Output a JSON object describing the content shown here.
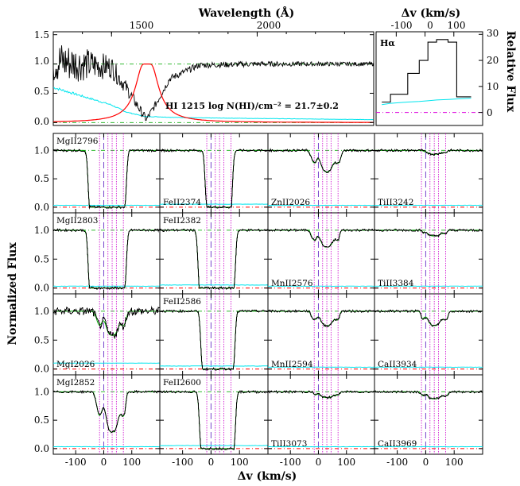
{
  "chart_data": [
    {
      "type": "line",
      "panel": "lyman-alpha",
      "top_axis_label": "Wavelength (Å)",
      "top_ticks": [
        "1500",
        "2000"
      ],
      "y_ticks": [
        "0.0",
        "0.5",
        "1.0",
        "1.5"
      ],
      "ylim": [
        -0.05,
        1.55
      ],
      "annotation": "HI 1215  log N(HI)/cm⁻² = 21.7±0.2",
      "series": [
        {
          "role": "flux",
          "color": "#000000"
        },
        {
          "role": "error",
          "color": "#00e5ee"
        },
        {
          "role": "voigt-fit",
          "color": "#ff0000"
        }
      ],
      "x_approx": [
        1300,
        1400,
        1500,
        1550,
        1600,
        1620,
        1650,
        1700,
        1800,
        2000,
        2200,
        2400
      ],
      "flux_approx": [
        1.05,
        1.0,
        0.95,
        0.6,
        0.2,
        0.05,
        0.3,
        0.75,
        0.98,
        1.0,
        1.0,
        1.0
      ],
      "error_approx": [
        0.6,
        0.45,
        0.3,
        0.18,
        0.12,
        0.1,
        0.1,
        0.09,
        0.08,
        0.07,
        0.06,
        0.05
      ]
    },
    {
      "type": "line",
      "panel": "h-alpha",
      "label": "Hα",
      "top_axis_label": "Δv (km/s)",
      "top_ticks": [
        "-100",
        "0",
        "100"
      ],
      "right_axis_label": "Relative Flux",
      "y_ticks": [
        "0",
        "10",
        "20",
        "30"
      ],
      "ylim": [
        -5,
        31
      ],
      "x": [
        -150,
        -120,
        -60,
        -20,
        10,
        40,
        80,
        110,
        160
      ],
      "flux_step": [
        4,
        7,
        15,
        20,
        27,
        28,
        27,
        6,
        6
      ],
      "error_level": [
        3,
        3.5,
        4,
        4.2,
        4.5,
        4.8,
        5,
        5.2,
        5.5
      ]
    },
    {
      "type": "line",
      "panel_grid": "metal-lines",
      "xlabel": "Δv (km/s)",
      "ylabel": "Normalized Flux",
      "x_ticks": [
        "-100",
        "0",
        "100"
      ],
      "xlim": [
        -180,
        200
      ],
      "y_ticks": [
        "0.0",
        "0.5",
        "1.0"
      ],
      "ylim": [
        -0.1,
        1.3
      ],
      "component_velocities": [
        -15,
        15,
        30,
        45,
        70
      ],
      "systemic_velocity": 0,
      "panels": [
        {
          "label": "MgII2796",
          "shape": "saturated",
          "v1": -50,
          "v2": 75,
          "depth": 1.0
        },
        {
          "label": "FeII2374",
          "shape": "saturated",
          "v1": -15,
          "v2": 70,
          "depth": 0.95
        },
        {
          "label": "ZnII2026",
          "shape": "medium",
          "v1": -30,
          "v2": 80,
          "depth": 0.45
        },
        {
          "label": "TiII3242",
          "shape": "weak",
          "v1": 0,
          "v2": 70,
          "depth": 0.08
        },
        {
          "label": "MgII2803",
          "shape": "saturated",
          "v1": -50,
          "v2": 75,
          "depth": 1.0
        },
        {
          "label": "FeII2382",
          "shape": "saturated",
          "v1": -40,
          "v2": 80,
          "depth": 1.0
        },
        {
          "label": "MnII2576",
          "shape": "medium",
          "v1": -25,
          "v2": 70,
          "depth": 0.35
        },
        {
          "label": "TiII3384",
          "shape": "weak",
          "v1": -5,
          "v2": 70,
          "depth": 0.12
        },
        {
          "label": "MgI2026",
          "shape": "medium",
          "v1": -60,
          "v2": 80,
          "depth": 0.5
        },
        {
          "label": "FeII2586",
          "shape": "saturated",
          "v1": -30,
          "v2": 78,
          "depth": 1.0
        },
        {
          "label": "MnII2594",
          "shape": "medium",
          "v1": -25,
          "v2": 70,
          "depth": 0.3
        },
        {
          "label": "CaII3934",
          "shape": "medium",
          "v1": -10,
          "v2": 75,
          "depth": 0.3
        },
        {
          "label": "MgI2852",
          "shape": "deep",
          "v1": -30,
          "v2": 75,
          "depth": 0.85
        },
        {
          "label": "FeII2600",
          "shape": "saturated",
          "v1": -35,
          "v2": 80,
          "depth": 1.0
        },
        {
          "label": "TiII3073",
          "shape": "weak",
          "v1": -10,
          "v2": 70,
          "depth": 0.12
        },
        {
          "label": "CaII3969",
          "shape": "weak",
          "v1": -10,
          "v2": 75,
          "depth": 0.15
        }
      ]
    }
  ],
  "colors": {
    "flux": "#000000",
    "error": "#00e5ee",
    "fit": "#ff0000",
    "continuum_fit": "#00aa00",
    "unity": "#33bb33",
    "zero": "#ff0000",
    "component": "#cc00cc",
    "halpha_zero": "#dd00dd"
  }
}
